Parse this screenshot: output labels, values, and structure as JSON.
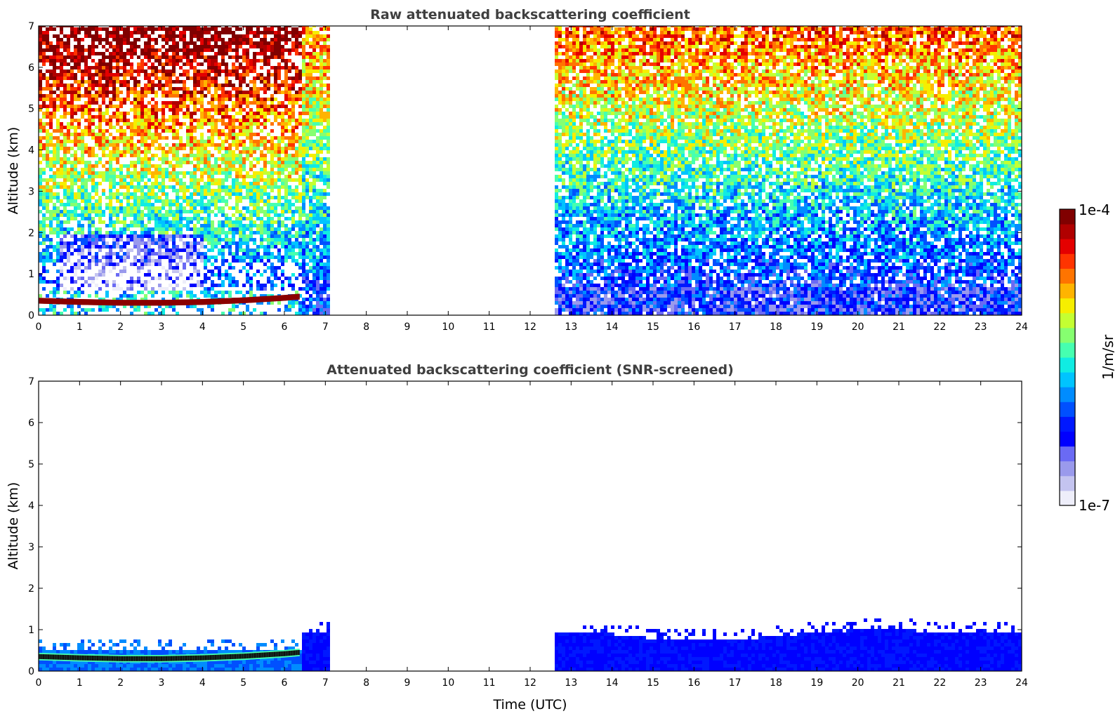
{
  "chart_data": [
    {
      "type": "heatmap",
      "title": "Raw attenuated backscattering coefficient",
      "xlabel": "",
      "ylabel": "Altitude (km)",
      "xlim": [
        0,
        24
      ],
      "ylim": [
        0,
        7
      ],
      "x_ticks": [
        "0",
        "1",
        "2",
        "3",
        "4",
        "5",
        "6",
        "7",
        "8",
        "9",
        "10",
        "11",
        "12",
        "13",
        "14",
        "15",
        "16",
        "17",
        "18",
        "19",
        "20",
        "21",
        "22",
        "23",
        "24"
      ],
      "y_ticks": [
        "0",
        "1",
        "2",
        "3",
        "4",
        "5",
        "6",
        "7"
      ],
      "data_gaps": [
        [
          7.1,
          12.55
        ]
      ],
      "segments": [
        {
          "x_range": [
            0,
            6.35
          ],
          "description_level": "high signal aloft (yellow-red above 4 km), sparse returns 0.5-2 km",
          "layer": {
            "x": [
              0,
              1,
              2,
              3,
              4,
              5,
              6,
              6.35
            ],
            "altitude_km": [
              0.35,
              0.32,
              0.3,
              0.3,
              0.32,
              0.36,
              0.42,
              0.45
            ],
            "level": "1e-4"
          }
        },
        {
          "x_range": [
            6.35,
            7.1
          ],
          "description_level": "blue/green noise, enhanced below 0.9 km"
        },
        {
          "x_range": [
            12.55,
            24
          ],
          "description_level": "noise yellow-green aloft, blue below 0.6 km"
        }
      ],
      "grid": false
    },
    {
      "type": "heatmap",
      "title": "Attenuated backscattering coefficient (SNR-screened)",
      "xlabel": "Time (UTC)",
      "ylabel": "Altitude (km)",
      "xlim": [
        0,
        24
      ],
      "ylim": [
        0,
        7
      ],
      "x_ticks": [
        "0",
        "1",
        "2",
        "3",
        "4",
        "5",
        "6",
        "7",
        "8",
        "9",
        "10",
        "11",
        "12",
        "13",
        "14",
        "15",
        "16",
        "17",
        "18",
        "19",
        "20",
        "21",
        "22",
        "23",
        "24"
      ],
      "y_ticks": [
        "0",
        "1",
        "2",
        "3",
        "4",
        "5",
        "6",
        "7"
      ],
      "data_gaps": [
        [
          7.1,
          12.55
        ]
      ],
      "segments": [
        {
          "x_range": [
            0,
            6.35
          ],
          "top_km": 0.5,
          "layer": {
            "x": [
              0,
              1,
              2,
              3,
              4,
              5,
              6,
              6.35
            ],
            "altitude_km": [
              0.35,
              0.32,
              0.3,
              0.3,
              0.32,
              0.36,
              0.42,
              0.45
            ]
          }
        },
        {
          "x_range": [
            6.35,
            7.1
          ],
          "top_km": 0.9
        },
        {
          "x_range": [
            12.55,
            24
          ],
          "top_km_profile": {
            "x": [
              12.55,
              14,
              15,
              16,
              17,
              18,
              19,
              20,
              21,
              22,
              23,
              24
            ],
            "top_km": [
              0.85,
              0.85,
              0.72,
              0.72,
              0.72,
              0.8,
              0.9,
              0.95,
              0.95,
              0.9,
              0.9,
              0.85
            ]
          }
        }
      ],
      "grid": false
    }
  ],
  "colorbar": {
    "max_label": "1e-4",
    "min_label": "1e-7",
    "unit_label": "1/m/sr",
    "colors": [
      "#eeeefa",
      "#c4c4f0",
      "#9a9aec",
      "#6a6af4",
      "#0000ff",
      "#0018ff",
      "#0050ff",
      "#008cff",
      "#00c4ff",
      "#10ece2",
      "#46ffb0",
      "#86ff70",
      "#c4ff32",
      "#f6ee00",
      "#ffb400",
      "#ff7400",
      "#ff3400",
      "#e40000",
      "#b00000",
      "#800000"
    ]
  }
}
